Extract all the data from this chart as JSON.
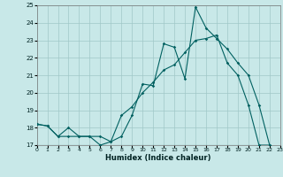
{
  "xlabel": "Humidex (Indice chaleur)",
  "xlim": [
    0,
    23
  ],
  "ylim": [
    17,
    25
  ],
  "yticks": [
    17,
    18,
    19,
    20,
    21,
    22,
    23,
    24,
    25
  ],
  "xticks": [
    0,
    1,
    2,
    3,
    4,
    5,
    6,
    7,
    8,
    9,
    10,
    11,
    12,
    13,
    14,
    15,
    16,
    17,
    18,
    19,
    20,
    21,
    22,
    23
  ],
  "bg_color": "#c8e8e8",
  "grid_color": "#a0c8c8",
  "line_color": "#006060",
  "line1_x": [
    0,
    1,
    2,
    3,
    4,
    5,
    6,
    7,
    8,
    9,
    10,
    11,
    12,
    13,
    14,
    15,
    16,
    17,
    18,
    19,
    20,
    21,
    22
  ],
  "line1_y": [
    18.2,
    18.1,
    17.5,
    17.5,
    17.5,
    17.5,
    17.0,
    17.2,
    17.5,
    18.7,
    20.5,
    20.4,
    22.8,
    22.6,
    20.8,
    24.9,
    23.7,
    23.1,
    22.5,
    21.7,
    21.0,
    19.3,
    17.0
  ],
  "line2_x": [
    0,
    1,
    2,
    3,
    4,
    5,
    6,
    7,
    8,
    9,
    10,
    11,
    12,
    13,
    14,
    15,
    16,
    17,
    18,
    19,
    20,
    21,
    22
  ],
  "line2_y": [
    18.2,
    18.1,
    17.5,
    18.0,
    17.5,
    17.5,
    17.5,
    17.2,
    18.7,
    19.2,
    20.0,
    20.6,
    21.3,
    21.6,
    22.3,
    23.0,
    23.1,
    23.3,
    21.7,
    21.0,
    19.3,
    17.0,
    17.0
  ],
  "line3_x": [
    0,
    3,
    16,
    22
  ],
  "line3_y": [
    17.0,
    17.0,
    17.0,
    17.0
  ]
}
